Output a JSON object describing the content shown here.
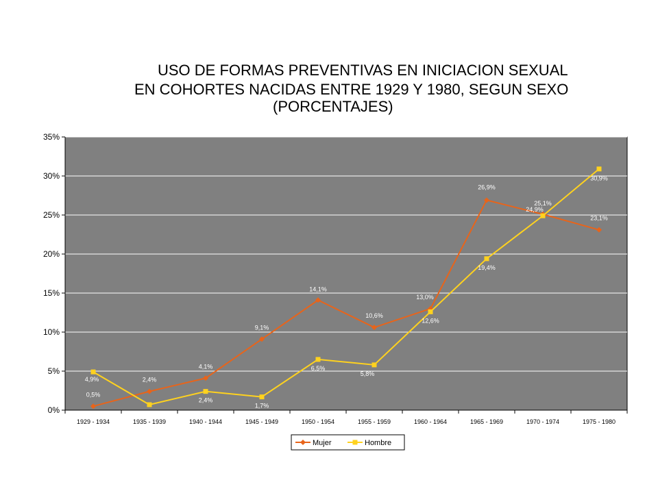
{
  "chart_data": {
    "type": "line",
    "title": [
      "USO DE FORMAS PREVENTIVAS EN INICIACION SEXUAL",
      "EN  COHORTES NACIDAS ENTRE 1929 Y 1980, SEGUN SEXO",
      "(PORCENTAJES)"
    ],
    "categories": [
      "1929 - 1934",
      "1935 - 1939",
      "1940 - 1944",
      "1945 - 1949",
      "1950 - 1954",
      "1955 - 1959",
      "1960 - 1964",
      "1965 - 1969",
      "1970 - 1974",
      "1975 - 1980"
    ],
    "ylim": [
      0,
      35
    ],
    "yticks": [
      0,
      5,
      10,
      15,
      20,
      25,
      30,
      35
    ],
    "ytick_labels": [
      "0%",
      "5%",
      "10%",
      "15%",
      "20%",
      "25%",
      "30%",
      "35%"
    ],
    "grid": true,
    "legend_position": "bottom",
    "plot_background": "#808080",
    "series": [
      {
        "name": "Mujer",
        "color": "#e8641a",
        "marker": "diamond",
        "values": [
          0.5,
          2.4,
          4.1,
          9.1,
          14.1,
          10.6,
          13.0,
          26.9,
          25.1,
          23.1
        ],
        "labels": [
          "0,5%",
          "2,4%",
          "4,1%",
          "9,1%",
          "14,1%",
          "10,6%",
          "13,0%",
          "26,9%",
          "25,1%",
          "23,1%"
        ]
      },
      {
        "name": "Hombre",
        "color": "#ffd21e",
        "marker": "square",
        "values": [
          4.9,
          0.7,
          2.4,
          1.7,
          6.5,
          5.8,
          12.6,
          19.4,
          24.9,
          30.9
        ],
        "labels": [
          "4,9%",
          "",
          "2,4%",
          "1,7%",
          "6,5%",
          "5,8%",
          "12,6%",
          "19,4%",
          "24,9%",
          "30,9%"
        ]
      }
    ]
  }
}
